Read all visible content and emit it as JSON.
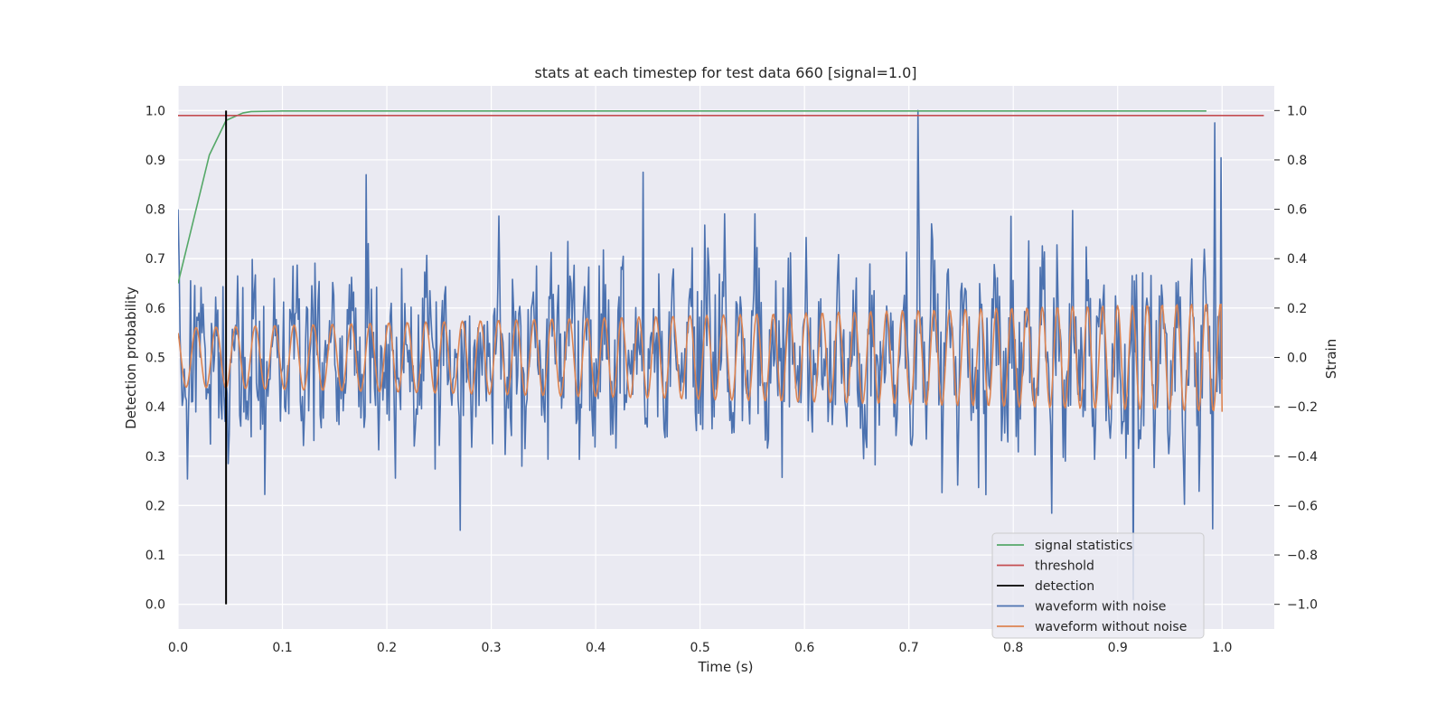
{
  "chart_data": {
    "type": "line",
    "title": "stats at each timestep for test data 660 [signal=1.0]",
    "xlabel": "Time (s)",
    "ylabel_left": "Detection probability",
    "ylabel_right": "Strain",
    "xlim": [
      0.0,
      1.05
    ],
    "ylim_left": [
      -0.05,
      1.05
    ],
    "ylim_right": [
      -1.1,
      1.1
    ],
    "grid": true,
    "legend_position": "lower right",
    "x_ticks": [
      "0.0",
      "0.1",
      "0.2",
      "0.3",
      "0.4",
      "0.5",
      "0.6",
      "0.7",
      "0.8",
      "0.9",
      "1.0"
    ],
    "y_ticks_left": [
      "0.0",
      "0.1",
      "0.2",
      "0.3",
      "0.4",
      "0.5",
      "0.6",
      "0.7",
      "0.8",
      "0.9",
      "1.0"
    ],
    "y_ticks_right": [
      "−1.0",
      "−0.8",
      "−0.6",
      "−0.4",
      "−0.2",
      "0.0",
      "0.2",
      "0.4",
      "0.6",
      "0.8",
      "1.0"
    ],
    "series": [
      {
        "name": "signal statistics",
        "axis": "left",
        "color": "#55a868",
        "x": [
          0.0,
          0.03,
          0.046,
          0.062,
          0.07,
          0.1,
          0.3,
          0.5,
          0.7,
          0.9,
          0.985
        ],
        "y": [
          0.65,
          0.91,
          0.98,
          0.995,
          0.998,
          0.999,
          0.999,
          0.999,
          0.999,
          0.999,
          0.999
        ]
      },
      {
        "name": "threshold",
        "axis": "left",
        "color": "#c44e52",
        "x": [
          0.0,
          1.04
        ],
        "y": [
          0.99,
          0.99
        ]
      },
      {
        "name": "detection",
        "axis": "left",
        "color": "#000000",
        "x": [
          0.046,
          0.046
        ],
        "y": [
          0.0,
          1.0
        ]
      },
      {
        "name": "waveform with noise",
        "axis": "right",
        "color": "#4c72b0",
        "x_start": 0.0,
        "x_end": 1.0,
        "num_points": 1000,
        "amplitude_scale": 0.28,
        "y_sample_peaks": [
          {
            "x": 0.0,
            "y": 0.6
          },
          {
            "x": 0.18,
            "y": 0.74
          },
          {
            "x": 0.27,
            "y": -0.7
          },
          {
            "x": 0.445,
            "y": 0.75
          },
          {
            "x": 0.709,
            "y": 1.0
          },
          {
            "x": 0.915,
            "y": -0.98
          },
          {
            "x": 0.993,
            "y": 0.95
          }
        ]
      },
      {
        "name": "waveform without noise",
        "axis": "right",
        "color": "#dd8452",
        "x_start": 0.0,
        "x_end": 1.0,
        "num_points": 1000,
        "amplitude_start": 0.12,
        "amplitude_end": 0.22,
        "freq_start_hz": 52,
        "freq_end_hz": 72,
        "end_value": -0.22
      }
    ]
  }
}
